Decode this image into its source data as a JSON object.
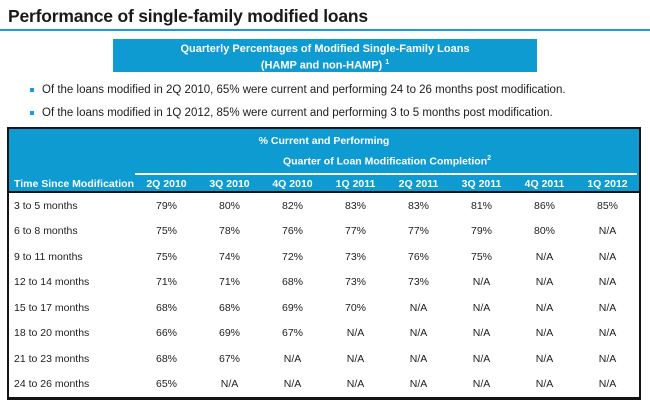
{
  "page": {
    "title": "Performance of single-family modified loans"
  },
  "banner": {
    "line1": "Quarterly Percentages of Modified Single-Family Loans",
    "line2": "(HAMP and non-HAMP)",
    "footnote_marker": "1"
  },
  "bullets": [
    "Of the loans modified in 2Q 2010, 65% were current and performing 24 to 26 months post modification.",
    "Of the loans modified in 1Q 2012, 85% were current and performing 3 to 5 months post modification."
  ],
  "table": {
    "header_line1": "% Current and Performing",
    "header_line2": "Quarter of Loan Modification Completion",
    "header_line2_footnote_marker": "2",
    "row_header_label": "Time Since Modification",
    "columns": [
      "2Q 2010",
      "3Q 2010",
      "4Q 2010",
      "1Q 2011",
      "2Q 2011",
      "3Q 2011",
      "4Q 2011",
      "1Q 2012"
    ],
    "rows": [
      {
        "label": "3 to 5 months",
        "values": [
          "79%",
          "80%",
          "82%",
          "83%",
          "83%",
          "81%",
          "86%",
          "85%"
        ]
      },
      {
        "label": "6 to 8 months",
        "values": [
          "75%",
          "78%",
          "76%",
          "77%",
          "77%",
          "79%",
          "80%",
          "N/A"
        ]
      },
      {
        "label": "9 to 11 months",
        "values": [
          "75%",
          "74%",
          "72%",
          "73%",
          "76%",
          "75%",
          "N/A",
          "N/A"
        ]
      },
      {
        "label": "12 to 14 months",
        "values": [
          "71%",
          "71%",
          "68%",
          "73%",
          "73%",
          "N/A",
          "N/A",
          "N/A"
        ]
      },
      {
        "label": "15 to 17 months",
        "values": [
          "68%",
          "68%",
          "69%",
          "70%",
          "N/A",
          "N/A",
          "N/A",
          "N/A"
        ]
      },
      {
        "label": "18 to 20 months",
        "values": [
          "66%",
          "69%",
          "67%",
          "N/A",
          "N/A",
          "N/A",
          "N/A",
          "N/A"
        ]
      },
      {
        "label": "21 to 23 months",
        "values": [
          "68%",
          "67%",
          "N/A",
          "N/A",
          "N/A",
          "N/A",
          "N/A",
          "N/A"
        ]
      },
      {
        "label": "24 to 26 months",
        "values": [
          "65%",
          "N/A",
          "N/A",
          "N/A",
          "N/A",
          "N/A",
          "N/A",
          "N/A"
        ]
      }
    ]
  },
  "colors": {
    "accent_blue": "#0e9bd2",
    "rule_blue": "#1a9cd8",
    "border_black": "#141414",
    "text_black": "#1d1d1d"
  }
}
